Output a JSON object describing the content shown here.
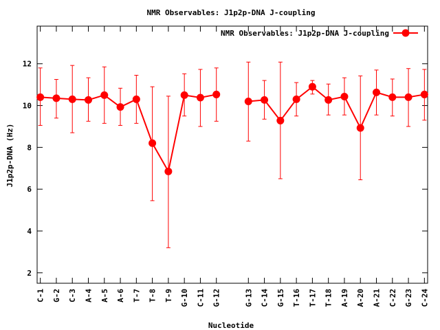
{
  "chart_data": {
    "type": "line",
    "title": "NMR Observables: J1p2p-DNA J-coupling",
    "xlabel": "Nucleotide",
    "ylabel": "J1p2p-DNA (Hz)",
    "ylim": [
      1.5,
      13.8
    ],
    "yticks": [
      2,
      4,
      6,
      8,
      10,
      12
    ],
    "grid": false,
    "legend_position": "top-right",
    "categories": [
      "C-1",
      "G-2",
      "C-3",
      "A-4",
      "A-5",
      "A-6",
      "T-7",
      "T-8",
      "T-9",
      "G-10",
      "C-11",
      "G-12",
      "G-13",
      "C-14",
      "G-15",
      "T-16",
      "T-17",
      "T-18",
      "A-19",
      "A-20",
      "A-21",
      "C-22",
      "G-23",
      "C-24"
    ],
    "x": [
      1,
      2,
      3,
      4,
      5,
      6,
      7,
      8,
      9,
      10,
      11,
      12,
      14,
      15,
      16,
      17,
      18,
      19,
      20,
      21,
      22,
      23,
      24,
      25
    ],
    "xlim": [
      0.8,
      25.2
    ],
    "series": [
      {
        "name": "NMR Observables: J1p2p-DNA J-coupling",
        "color": "#ff0000",
        "segments": [
          [
            0,
            11
          ],
          [
            12,
            23
          ]
        ],
        "values": [
          10.4,
          10.35,
          10.3,
          10.27,
          10.5,
          9.93,
          10.3,
          8.2,
          6.85,
          10.5,
          10.38,
          10.53,
          10.2,
          10.27,
          9.28,
          10.3,
          10.9,
          10.27,
          10.43,
          8.93,
          10.63,
          10.4,
          10.4,
          10.53
        ],
        "err_low": [
          9.05,
          9.4,
          8.7,
          9.25,
          9.15,
          9.05,
          9.15,
          5.45,
          3.2,
          9.5,
          9.0,
          9.25,
          8.3,
          9.35,
          6.5,
          9.5,
          10.55,
          9.55,
          9.55,
          6.45,
          9.55,
          9.5,
          9.0,
          9.3
        ],
        "err_high": [
          11.8,
          11.25,
          11.92,
          11.33,
          11.85,
          10.83,
          11.45,
          10.9,
          10.45,
          11.52,
          11.73,
          11.8,
          12.08,
          11.2,
          12.08,
          11.1,
          11.2,
          11.03,
          11.33,
          11.42,
          11.7,
          11.27,
          11.77,
          11.73
        ]
      }
    ]
  }
}
